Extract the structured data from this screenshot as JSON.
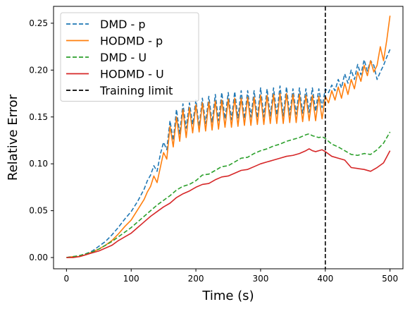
{
  "chart_data": {
    "type": "line",
    "xlabel": "Time (s)",
    "ylabel": "Relative Error",
    "xlim": [
      -20,
      520
    ],
    "ylim": [
      -0.012,
      0.268
    ],
    "xticks": [
      0,
      100,
      200,
      300,
      400,
      500
    ],
    "yticks": [
      0.0,
      0.05,
      0.1,
      0.15,
      0.2,
      0.25
    ],
    "xtick_labels": [
      "0",
      "100",
      "200",
      "300",
      "400",
      "500"
    ],
    "ytick_labels": [
      "0.00",
      "0.05",
      "0.10",
      "0.15",
      "0.20",
      "0.25"
    ],
    "grid": false,
    "legend_position": "top-left",
    "series": [
      {
        "name": "DMD - p",
        "color": "#1f77b4",
        "style": "dashed",
        "x": [
          0,
          10,
          20,
          30,
          40,
          50,
          60,
          70,
          80,
          90,
          100,
          110,
          120,
          125,
          130,
          135,
          140,
          145,
          150,
          155,
          160,
          165,
          170,
          175,
          180,
          185,
          190,
          195,
          200,
          205,
          210,
          215,
          220,
          225,
          230,
          235,
          240,
          245,
          250,
          255,
          260,
          265,
          270,
          275,
          280,
          285,
          290,
          295,
          300,
          305,
          310,
          315,
          320,
          325,
          330,
          335,
          340,
          345,
          350,
          355,
          360,
          365,
          370,
          375,
          380,
          385,
          390,
          395,
          400,
          405,
          410,
          415,
          420,
          425,
          430,
          435,
          440,
          445,
          450,
          455,
          460,
          465,
          470,
          475,
          480,
          485,
          490,
          495,
          500
        ],
        "y": [
          0.0,
          0.001,
          0.002,
          0.004,
          0.007,
          0.012,
          0.017,
          0.024,
          0.032,
          0.041,
          0.049,
          0.06,
          0.073,
          0.082,
          0.088,
          0.098,
          0.092,
          0.11,
          0.123,
          0.115,
          0.146,
          0.125,
          0.158,
          0.132,
          0.164,
          0.138,
          0.165,
          0.142,
          0.168,
          0.14,
          0.17,
          0.143,
          0.172,
          0.144,
          0.174,
          0.146,
          0.176,
          0.148,
          0.176,
          0.147,
          0.177,
          0.149,
          0.178,
          0.148,
          0.178,
          0.15,
          0.178,
          0.149,
          0.181,
          0.15,
          0.18,
          0.151,
          0.181,
          0.152,
          0.183,
          0.151,
          0.182,
          0.152,
          0.18,
          0.153,
          0.181,
          0.154,
          0.18,
          0.155,
          0.181,
          0.156,
          0.18,
          0.16,
          0.18,
          0.176,
          0.184,
          0.178,
          0.19,
          0.181,
          0.196,
          0.186,
          0.2,
          0.19,
          0.206,
          0.195,
          0.211,
          0.199,
          0.21,
          0.205,
          0.19,
          0.198,
          0.205,
          0.214,
          0.222
        ]
      },
      {
        "name": "HODMD - p",
        "color": "#ff7f0e",
        "style": "solid",
        "x": [
          0,
          10,
          20,
          30,
          40,
          50,
          60,
          70,
          80,
          90,
          100,
          110,
          120,
          125,
          130,
          135,
          140,
          145,
          150,
          155,
          160,
          165,
          170,
          175,
          180,
          185,
          190,
          195,
          200,
          205,
          210,
          215,
          220,
          225,
          230,
          235,
          240,
          245,
          250,
          255,
          260,
          265,
          270,
          275,
          280,
          285,
          290,
          295,
          300,
          305,
          310,
          315,
          320,
          325,
          330,
          335,
          340,
          345,
          350,
          355,
          360,
          365,
          370,
          375,
          380,
          385,
          390,
          395,
          400,
          405,
          410,
          415,
          420,
          425,
          430,
          435,
          440,
          445,
          450,
          455,
          460,
          465,
          470,
          475,
          480,
          485,
          490,
          495,
          500
        ],
        "y": [
          0.0,
          0.001,
          0.001,
          0.003,
          0.006,
          0.009,
          0.013,
          0.018,
          0.025,
          0.033,
          0.04,
          0.051,
          0.062,
          0.07,
          0.076,
          0.087,
          0.08,
          0.096,
          0.112,
          0.105,
          0.14,
          0.118,
          0.15,
          0.124,
          0.158,
          0.128,
          0.16,
          0.133,
          0.163,
          0.134,
          0.165,
          0.135,
          0.166,
          0.136,
          0.167,
          0.137,
          0.168,
          0.139,
          0.169,
          0.139,
          0.17,
          0.14,
          0.17,
          0.141,
          0.171,
          0.141,
          0.171,
          0.142,
          0.173,
          0.142,
          0.173,
          0.143,
          0.174,
          0.143,
          0.175,
          0.143,
          0.175,
          0.144,
          0.174,
          0.144,
          0.174,
          0.145,
          0.173,
          0.146,
          0.173,
          0.146,
          0.172,
          0.148,
          0.172,
          0.165,
          0.178,
          0.168,
          0.182,
          0.17,
          0.186,
          0.174,
          0.19,
          0.18,
          0.198,
          0.188,
          0.205,
          0.194,
          0.21,
          0.198,
          0.205,
          0.225,
          0.21,
          0.232,
          0.258
        ]
      },
      {
        "name": "DMD - U",
        "color": "#2ca02c",
        "style": "dashed",
        "x": [
          0,
          10,
          20,
          30,
          40,
          50,
          60,
          70,
          80,
          90,
          100,
          110,
          120,
          130,
          140,
          150,
          160,
          170,
          180,
          190,
          200,
          210,
          220,
          230,
          240,
          250,
          260,
          270,
          280,
          290,
          300,
          310,
          320,
          330,
          340,
          350,
          360,
          370,
          375,
          380,
          385,
          390,
          395,
          400,
          410,
          420,
          430,
          440,
          450,
          460,
          470,
          480,
          490,
          500
        ],
        "y": [
          0.0,
          0.001,
          0.002,
          0.004,
          0.006,
          0.009,
          0.013,
          0.017,
          0.022,
          0.027,
          0.032,
          0.038,
          0.044,
          0.05,
          0.056,
          0.061,
          0.066,
          0.072,
          0.076,
          0.078,
          0.082,
          0.088,
          0.089,
          0.093,
          0.097,
          0.098,
          0.102,
          0.106,
          0.107,
          0.111,
          0.114,
          0.116,
          0.119,
          0.121,
          0.124,
          0.126,
          0.128,
          0.131,
          0.132,
          0.13,
          0.129,
          0.128,
          0.129,
          0.127,
          0.121,
          0.118,
          0.114,
          0.11,
          0.109,
          0.111,
          0.11,
          0.115,
          0.122,
          0.134
        ]
      },
      {
        "name": "HODMD - U",
        "color": "#d62728",
        "style": "solid",
        "x": [
          0,
          10,
          20,
          30,
          40,
          50,
          60,
          70,
          80,
          90,
          100,
          110,
          120,
          130,
          140,
          150,
          160,
          170,
          180,
          190,
          200,
          210,
          220,
          230,
          240,
          250,
          260,
          270,
          280,
          290,
          300,
          310,
          320,
          330,
          340,
          350,
          360,
          370,
          375,
          380,
          385,
          390,
          395,
          400,
          410,
          420,
          430,
          440,
          450,
          460,
          470,
          480,
          490,
          500
        ],
        "y": [
          0.0,
          0.0,
          0.001,
          0.003,
          0.005,
          0.007,
          0.01,
          0.013,
          0.018,
          0.022,
          0.026,
          0.032,
          0.038,
          0.044,
          0.049,
          0.054,
          0.058,
          0.064,
          0.068,
          0.071,
          0.075,
          0.078,
          0.079,
          0.083,
          0.086,
          0.087,
          0.09,
          0.093,
          0.094,
          0.097,
          0.1,
          0.102,
          0.104,
          0.106,
          0.108,
          0.109,
          0.111,
          0.114,
          0.116,
          0.114,
          0.113,
          0.114,
          0.115,
          0.113,
          0.108,
          0.106,
          0.104,
          0.096,
          0.095,
          0.094,
          0.092,
          0.096,
          0.101,
          0.114
        ]
      },
      {
        "name": "Training limit",
        "color": "#000000",
        "style": "dashed",
        "vline_x": 400
      }
    ]
  }
}
